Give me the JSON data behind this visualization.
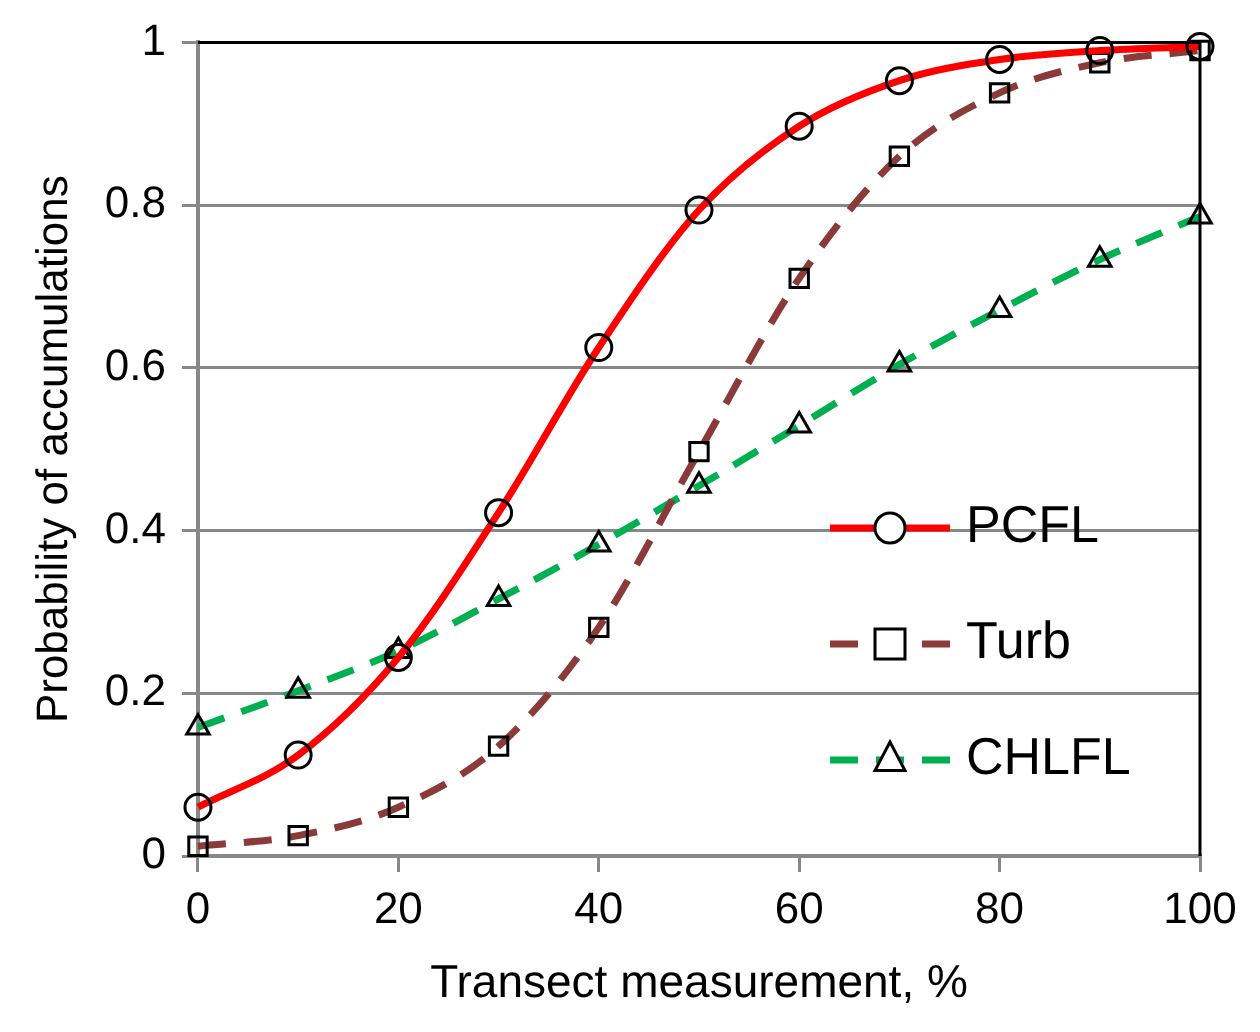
{
  "chart_data": {
    "type": "line",
    "xlabel": "Transect measurement, %",
    "ylabel": "Probability of accumulations",
    "x": [
      0,
      10,
      20,
      30,
      40,
      50,
      60,
      70,
      80,
      90,
      100
    ],
    "xlim": [
      0,
      100
    ],
    "xticks": [
      0,
      20,
      40,
      60,
      80,
      100
    ],
    "ylim": [
      0,
      1
    ],
    "yticks": [
      0,
      0.2,
      0.4,
      0.6,
      0.8,
      1
    ],
    "grid": "y",
    "legend": "bottom right",
    "series": [
      {
        "name": "PCFL",
        "color": "#ff0000",
        "line_style": "solid",
        "marker": "circle",
        "values": [
          0.06,
          0.124,
          0.244,
          0.422,
          0.625,
          0.794,
          0.897,
          0.953,
          0.979,
          0.99,
          0.995
        ]
      },
      {
        "name": "Turb",
        "color": "#8b3a3a",
        "line_style": "dashed",
        "marker": "square",
        "values": [
          0.012,
          0.025,
          0.06,
          0.135,
          0.281,
          0.497,
          0.71,
          0.86,
          0.938,
          0.975,
          0.99
        ]
      },
      {
        "name": "CHLFL",
        "color": "#00b050",
        "line_style": "dashed",
        "marker": "triangle",
        "values": [
          0.158,
          0.203,
          0.252,
          0.316,
          0.383,
          0.455,
          0.529,
          0.604,
          0.671,
          0.733,
          0.786
        ]
      }
    ]
  }
}
